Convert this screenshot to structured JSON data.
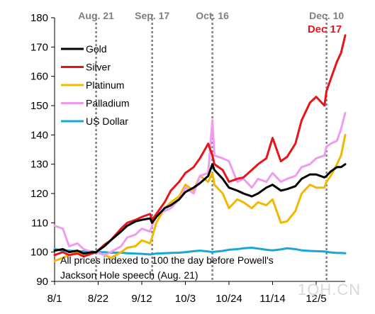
{
  "chart_data": {
    "type": "line",
    "title": "",
    "xlabel": "",
    "ylabel": "",
    "ylim": [
      90,
      180
    ],
    "y_ticks": [
      90,
      100,
      110,
      120,
      130,
      140,
      150,
      160,
      170,
      180
    ],
    "x_range": [
      "2025-08-01",
      "2025-12-19"
    ],
    "x_ticks": [
      {
        "date": "2025-08-01",
        "label": "8/1"
      },
      {
        "date": "2025-08-22",
        "label": "8/22"
      },
      {
        "date": "2025-09-12",
        "label": "9/12"
      },
      {
        "date": "2025-10-03",
        "label": "10/3"
      },
      {
        "date": "2025-10-24",
        "label": "10/24"
      },
      {
        "date": "2025-11-14",
        "label": "11/14"
      },
      {
        "date": "2025-12-05",
        "label": "12/5"
      }
    ],
    "grid": false,
    "legend_position": "top-left",
    "event_lines": [
      {
        "date": "2025-08-21",
        "label": "Aug. 21"
      },
      {
        "date": "2025-09-17",
        "label": "Sep. 17"
      },
      {
        "date": "2025-10-16",
        "label": "Oct. 16"
      },
      {
        "date": "2025-12-10",
        "label": "Dec. 10"
      }
    ],
    "end_annotation": {
      "label": "Dec 17",
      "color": "#e8141c"
    },
    "note_lines": [
      "All prices indexed to 100 the day before Powell's",
      "Jackson Hole speech (Aug. 21)"
    ],
    "series": [
      {
        "name": "Gold",
        "color": "#000000",
        "x": [
          "2025-08-01",
          "2025-08-05",
          "2025-08-08",
          "2025-08-12",
          "2025-08-15",
          "2025-08-19",
          "2025-08-21",
          "2025-08-25",
          "2025-08-28",
          "2025-09-02",
          "2025-09-05",
          "2025-09-09",
          "2025-09-12",
          "2025-09-16",
          "2025-09-17",
          "2025-09-19",
          "2025-09-23",
          "2025-09-26",
          "2025-09-30",
          "2025-10-03",
          "2025-10-07",
          "2025-10-10",
          "2025-10-14",
          "2025-10-16",
          "2025-10-17",
          "2025-10-21",
          "2025-10-24",
          "2025-10-28",
          "2025-10-31",
          "2025-11-04",
          "2025-11-07",
          "2025-11-11",
          "2025-11-14",
          "2025-11-18",
          "2025-11-21",
          "2025-11-25",
          "2025-11-28",
          "2025-12-02",
          "2025-12-05",
          "2025-12-09",
          "2025-12-10",
          "2025-12-12",
          "2025-12-15",
          "2025-12-17",
          "2025-12-19"
        ],
        "values": [
          100.5,
          101,
          100,
          100.5,
          99.5,
          100,
          100,
          102,
          104,
          107,
          109,
          110.5,
          111,
          111.5,
          110,
          112,
          115,
          116,
          118,
          120.5,
          122,
          123.5,
          126,
          130,
          128,
          125,
          122,
          121,
          120,
          119,
          120,
          122,
          123,
          121,
          121.5,
          122.5,
          125,
          126.5,
          126.5,
          125.5,
          126,
          127.5,
          129,
          129,
          130
        ]
      },
      {
        "name": "Silver",
        "color": "#e8141c",
        "x": [
          "2025-08-01",
          "2025-08-05",
          "2025-08-08",
          "2025-08-12",
          "2025-08-15",
          "2025-08-19",
          "2025-08-21",
          "2025-08-25",
          "2025-08-28",
          "2025-09-02",
          "2025-09-05",
          "2025-09-09",
          "2025-09-12",
          "2025-09-16",
          "2025-09-17",
          "2025-09-19",
          "2025-09-23",
          "2025-09-26",
          "2025-09-30",
          "2025-10-03",
          "2025-10-07",
          "2025-10-10",
          "2025-10-14",
          "2025-10-16",
          "2025-10-17",
          "2025-10-21",
          "2025-10-24",
          "2025-10-28",
          "2025-10-31",
          "2025-11-04",
          "2025-11-07",
          "2025-11-11",
          "2025-11-14",
          "2025-11-18",
          "2025-11-21",
          "2025-11-25",
          "2025-11-28",
          "2025-12-02",
          "2025-12-05",
          "2025-12-09",
          "2025-12-10",
          "2025-12-12",
          "2025-12-15",
          "2025-12-17",
          "2025-12-19"
        ],
        "values": [
          99,
          100,
          99,
          99.5,
          98.5,
          99.5,
          100,
          102.5,
          104,
          108,
          110,
          111,
          112,
          113,
          111,
          113,
          117,
          121,
          124,
          127,
          129,
          132,
          137,
          133,
          130,
          128,
          124,
          125,
          125.5,
          128,
          130,
          132,
          139,
          131,
          132.5,
          137,
          145,
          151,
          153,
          150,
          155,
          159,
          165,
          168,
          174
        ]
      },
      {
        "name": "Platinum",
        "color": "#f2b800",
        "x": [
          "2025-08-01",
          "2025-08-05",
          "2025-08-08",
          "2025-08-12",
          "2025-08-15",
          "2025-08-19",
          "2025-08-21",
          "2025-08-25",
          "2025-08-28",
          "2025-09-02",
          "2025-09-05",
          "2025-09-09",
          "2025-09-12",
          "2025-09-16",
          "2025-09-17",
          "2025-09-19",
          "2025-09-23",
          "2025-09-26",
          "2025-09-30",
          "2025-10-03",
          "2025-10-07",
          "2025-10-10",
          "2025-10-14",
          "2025-10-16",
          "2025-10-17",
          "2025-10-21",
          "2025-10-24",
          "2025-10-28",
          "2025-10-31",
          "2025-11-04",
          "2025-11-07",
          "2025-11-11",
          "2025-11-14",
          "2025-11-18",
          "2025-11-21",
          "2025-11-25",
          "2025-11-28",
          "2025-12-02",
          "2025-12-05",
          "2025-12-09",
          "2025-12-10",
          "2025-12-12",
          "2025-12-15",
          "2025-12-17",
          "2025-12-19"
        ],
        "values": [
          97,
          98,
          99,
          100,
          99,
          99.5,
          100,
          99,
          98,
          100,
          101.5,
          102,
          104,
          103,
          105,
          110,
          115,
          117,
          119,
          123,
          121,
          126,
          124,
          127,
          123,
          120,
          115,
          118,
          117,
          115,
          117,
          116,
          118,
          110,
          110.5,
          114,
          120,
          123,
          122,
          122,
          124,
          126,
          130,
          133,
          140
        ]
      },
      {
        "name": "Palladium",
        "color": "#ef9cef",
        "x": [
          "2025-08-01",
          "2025-08-05",
          "2025-08-08",
          "2025-08-12",
          "2025-08-15",
          "2025-08-19",
          "2025-08-21",
          "2025-08-25",
          "2025-08-28",
          "2025-09-02",
          "2025-09-05",
          "2025-09-09",
          "2025-09-12",
          "2025-09-16",
          "2025-09-17",
          "2025-09-19",
          "2025-09-23",
          "2025-09-26",
          "2025-09-30",
          "2025-10-03",
          "2025-10-07",
          "2025-10-10",
          "2025-10-14",
          "2025-10-16",
          "2025-10-17",
          "2025-10-21",
          "2025-10-24",
          "2025-10-28",
          "2025-10-31",
          "2025-11-04",
          "2025-11-07",
          "2025-11-11",
          "2025-11-14",
          "2025-11-18",
          "2025-11-21",
          "2025-11-25",
          "2025-11-28",
          "2025-12-02",
          "2025-12-05",
          "2025-12-09",
          "2025-12-10",
          "2025-12-12",
          "2025-12-15",
          "2025-12-17",
          "2025-12-19"
        ],
        "values": [
          109,
          108,
          102,
          103,
          101,
          100,
          100,
          99,
          100,
          102,
          105,
          106,
          108,
          107,
          109,
          113,
          114,
          115,
          118,
          122,
          120,
          126,
          127,
          145,
          133,
          132,
          131,
          124,
          125,
          122,
          125,
          124,
          127,
          124,
          125,
          126,
          129,
          130,
          132,
          133,
          136,
          137,
          138,
          142,
          147.5
        ]
      },
      {
        "name": "US Dollar",
        "color": "#1aa7d6",
        "x": [
          "2025-08-01",
          "2025-08-05",
          "2025-08-08",
          "2025-08-12",
          "2025-08-15",
          "2025-08-19",
          "2025-08-21",
          "2025-08-25",
          "2025-08-28",
          "2025-09-02",
          "2025-09-05",
          "2025-09-09",
          "2025-09-12",
          "2025-09-16",
          "2025-09-17",
          "2025-09-19",
          "2025-09-23",
          "2025-09-26",
          "2025-09-30",
          "2025-10-03",
          "2025-10-07",
          "2025-10-10",
          "2025-10-14",
          "2025-10-16",
          "2025-10-17",
          "2025-10-21",
          "2025-10-24",
          "2025-10-28",
          "2025-10-31",
          "2025-11-04",
          "2025-11-07",
          "2025-11-11",
          "2025-11-14",
          "2025-11-18",
          "2025-11-21",
          "2025-11-25",
          "2025-11-28",
          "2025-12-02",
          "2025-12-05",
          "2025-12-09",
          "2025-12-10",
          "2025-12-12",
          "2025-12-15",
          "2025-12-17",
          "2025-12-19"
        ],
        "values": [
          101,
          100.5,
          100.5,
          100.3,
          100.2,
          100.2,
          100,
          100,
          99.8,
          99.8,
          99.6,
          99.5,
          99.4,
          99.2,
          99.3,
          99.5,
          99.6,
          99.7,
          99.8,
          100,
          100.3,
          100.5,
          100.2,
          100,
          100.1,
          100.4,
          100.8,
          101,
          101.3,
          101.5,
          101.2,
          100.8,
          100.6,
          100.9,
          101.3,
          101,
          100.6,
          100.4,
          100.3,
          100.2,
          100.1,
          99.9,
          99.7,
          99.7,
          99.6
        ]
      }
    ]
  },
  "watermark": "1QH.CN"
}
